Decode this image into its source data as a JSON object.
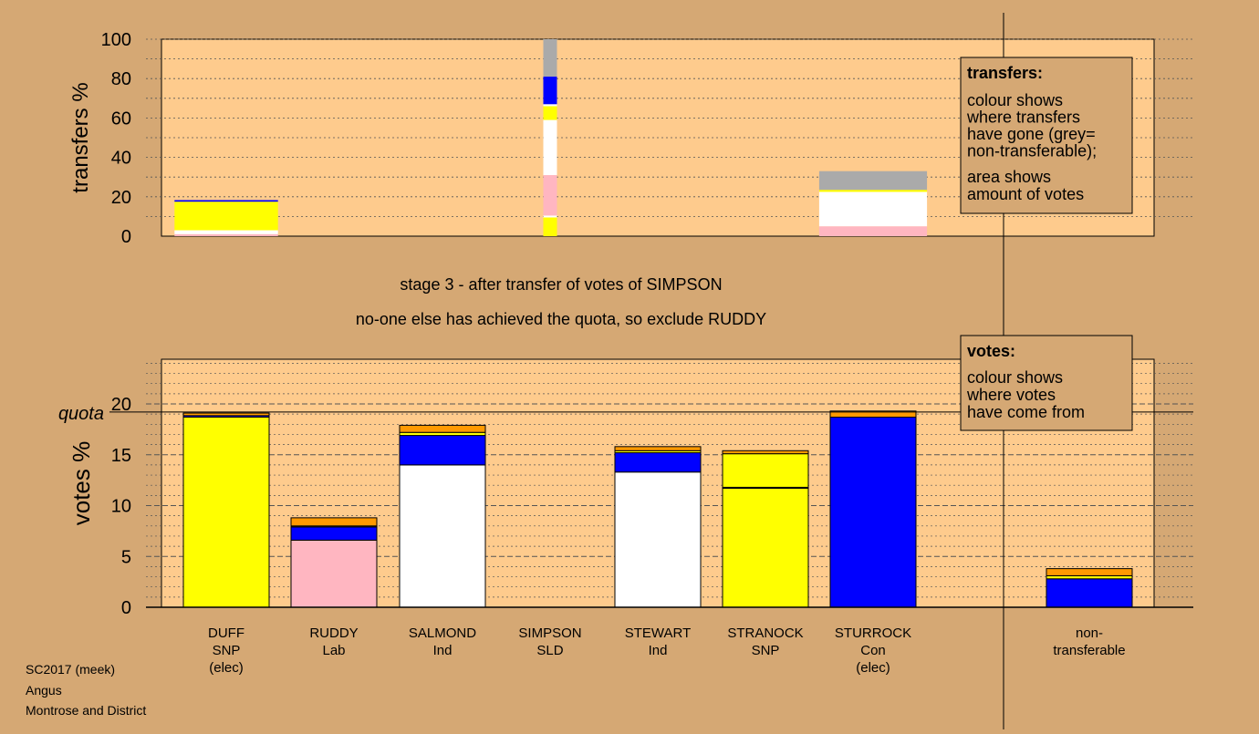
{
  "colors": {
    "background": "#d5a874",
    "plot_background": "#fecb8d",
    "SNP": "#ffff00",
    "Lab": "#ffb6c1",
    "Ind": "#ffffff",
    "Con": "#0000ff",
    "SLD": "#ff9900",
    "non_transferable": "#aaaaaa"
  },
  "stage_text": {
    "line1": "stage 3 - after transfer of votes of SIMPSON",
    "line2": "no-one else has achieved the quota, so exclude RUDDY"
  },
  "footer": {
    "line1": "SC2017 (meek)",
    "line2": "Angus",
    "line3": "Montrose and District"
  },
  "legend_transfers": {
    "title": "transfers:",
    "lines1": [
      "colour shows",
      "where transfers",
      "have gone (grey=",
      "non-transferable);"
    ],
    "lines2": [
      "area shows",
      "amount of votes"
    ]
  },
  "legend_votes": {
    "title": "votes:",
    "lines": [
      "colour shows",
      "where votes",
      "have come from"
    ]
  },
  "chart_data": [
    {
      "type": "bar",
      "ylabel": "transfers %",
      "ylim": [
        0,
        100
      ],
      "yticks": [
        0,
        20,
        40,
        60,
        80,
        100
      ],
      "bars": [
        {
          "candidate": "DUFF",
          "width_fraction": 0.189,
          "segments": [
            {
              "party": "Lab",
              "from": 0,
              "to": 1
            },
            {
              "party": "Ind",
              "from": 1,
              "to": 3
            },
            {
              "party": "SNP",
              "from": 3,
              "to": 17.5
            },
            {
              "party": "Con",
              "from": 17.5,
              "to": 18.3
            }
          ]
        },
        {
          "candidate": "SIMPSON",
          "width_fraction": 0.025,
          "segments": [
            {
              "party": "SNP",
              "from": 0,
              "to": 9.5
            },
            {
              "party": "Ind",
              "from": 9.5,
              "to": 10.5
            },
            {
              "party": "Lab",
              "from": 10.5,
              "to": 31
            },
            {
              "party": "Ind",
              "from": 31,
              "to": 59
            },
            {
              "party": "SNP",
              "from": 59,
              "to": 66
            },
            {
              "party": "Ind",
              "from": 66,
              "to": 67
            },
            {
              "party": "Con",
              "from": 67,
              "to": 81
            },
            {
              "party": "non_transferable",
              "from": 81,
              "to": 100
            }
          ]
        },
        {
          "candidate": "STURROCK",
          "width_fraction": 0.197,
          "segments": [
            {
              "party": "Lab",
              "from": 0,
              "to": 5
            },
            {
              "party": "Ind",
              "from": 5,
              "to": 22.5
            },
            {
              "party": "SNP",
              "from": 22.5,
              "to": 23.5
            },
            {
              "party": "non_transferable",
              "from": 23.5,
              "to": 33
            }
          ]
        }
      ]
    },
    {
      "type": "bar",
      "ylabel": "votes %",
      "ylim": [
        0,
        20
      ],
      "yticks": [
        0,
        5,
        10,
        15,
        20
      ],
      "quota": 19.2,
      "quota_label": "quota",
      "candidates": [
        {
          "name": "DUFF",
          "party": "SNP",
          "note": "(elec)",
          "segments": [
            {
              "party": "SNP",
              "value": 18.7
            },
            {
              "party": "Con",
              "value": 0.15
            },
            {
              "party": "SLD",
              "value": 0.25
            }
          ]
        },
        {
          "name": "RUDDY",
          "party": "Lab",
          "note": "",
          "segments": [
            {
              "party": "Lab",
              "value": 6.6
            },
            {
              "party": "Con",
              "value": 1.3
            },
            {
              "party": "SNP",
              "value": 0.1
            },
            {
              "party": "SLD",
              "value": 0.8
            }
          ]
        },
        {
          "name": "SALMOND",
          "party": "Ind",
          "note": "",
          "segments": [
            {
              "party": "Ind",
              "value": 14.0
            },
            {
              "party": "Con",
              "value": 2.9
            },
            {
              "party": "SNP",
              "value": 0.3
            },
            {
              "party": "SLD",
              "value": 0.7
            }
          ]
        },
        {
          "name": "SIMPSON",
          "party": "SLD",
          "note": "",
          "segments": []
        },
        {
          "name": "STEWART",
          "party": "Ind",
          "note": "",
          "segments": [
            {
              "party": "Ind",
              "value": 13.3
            },
            {
              "party": "Con",
              "value": 1.9
            },
            {
              "party": "SNP",
              "value": 0.2
            },
            {
              "party": "SLD",
              "value": 0.4
            }
          ]
        },
        {
          "name": "STRANOCK",
          "party": "SNP",
          "note": "",
          "segments": [
            {
              "party": "SNP",
              "value": 11.7
            },
            {
              "party": "Con",
              "value": 0.1
            },
            {
              "party": "SNP",
              "value": 3.3
            },
            {
              "party": "SLD",
              "value": 0.3
            }
          ]
        },
        {
          "name": "STURROCK",
          "party": "Con",
          "note": "(elec)",
          "segments": [
            {
              "party": "Con",
              "value": 18.7
            },
            {
              "party": "SLD",
              "value": 0.6
            }
          ]
        }
      ],
      "non_transferable": {
        "label_lines": [
          "non-",
          "transferable"
        ],
        "segments": [
          {
            "party": "Con",
            "value": 2.8
          },
          {
            "party": "SNP",
            "value": 0.3
          },
          {
            "party": "SLD",
            "value": 0.7
          }
        ]
      }
    }
  ]
}
